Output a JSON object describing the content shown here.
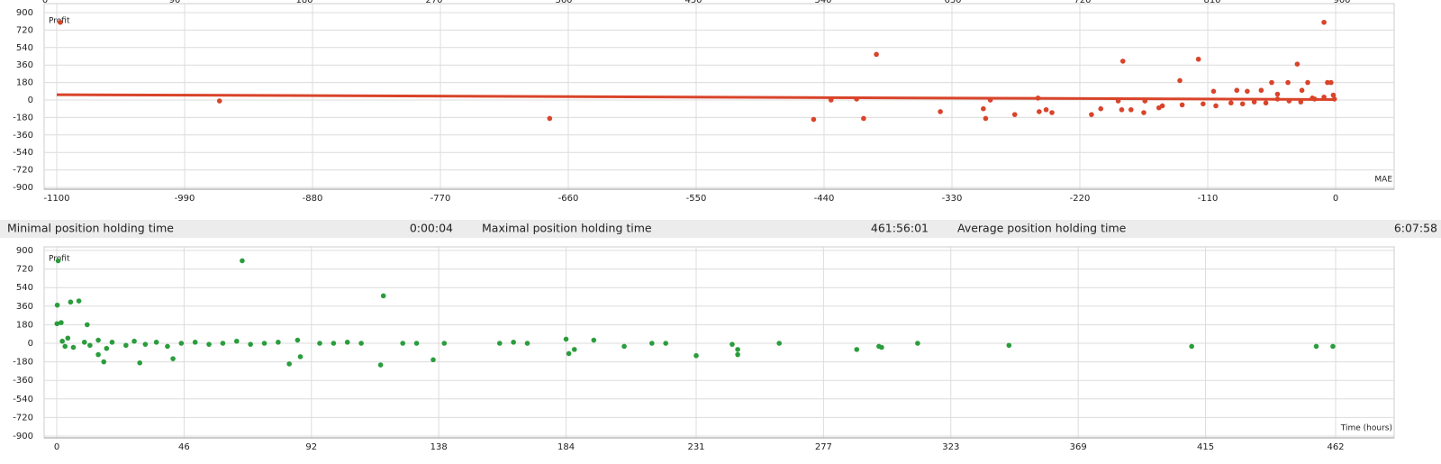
{
  "stats": [
    {
      "label": "Minimal position holding time",
      "value": "0:00:04"
    },
    {
      "label": "Maximal position holding time",
      "value": "461:56:01"
    },
    {
      "label": "Average position holding time",
      "value": "6:07:58"
    }
  ],
  "chart_data": [
    {
      "type": "scatter",
      "y_label": "Profit",
      "x_label": "MAE",
      "xlim": [
        -1100,
        0
      ],
      "xticks": [
        -1100,
        -990,
        -880,
        -770,
        -660,
        -550,
        -440,
        -330,
        -220,
        -110,
        0
      ],
      "x2lim": [
        0,
        900
      ],
      "x2ticks": [
        0,
        90,
        180,
        270,
        360,
        450,
        540,
        630,
        720,
        810,
        900
      ],
      "ylim": [
        -900,
        900
      ],
      "yticks": [
        -900,
        -720,
        -540,
        -360,
        -180,
        0,
        180,
        360,
        540,
        720,
        900
      ],
      "grid": true,
      "series": [
        {
          "color": "#d9442a",
          "x": [
            -1097,
            -960,
            -676,
            -449,
            -434,
            -412,
            -406,
            -395,
            -340,
            -303,
            -301,
            -297,
            -276,
            -256,
            -255,
            -249,
            -244,
            -210,
            -202,
            -187,
            -184,
            -183,
            -176,
            -165,
            -164,
            -152,
            -149,
            -134,
            -132,
            -118,
            -114,
            -105,
            -103,
            -85,
            -76,
            -64,
            -55,
            -50,
            -41,
            -33,
            -29,
            -24,
            -18,
            -10,
            -7,
            -4,
            -2,
            -1,
            -90,
            -70,
            -60,
            -40,
            -20,
            -10,
            -30,
            -80,
            -50
          ],
          "values": [
            800,
            -10,
            -190,
            -200,
            0,
            10,
            -190,
            470,
            -120,
            -90,
            -190,
            0,
            -150,
            20,
            -120,
            -100,
            -130,
            -150,
            -90,
            -10,
            -100,
            400,
            -100,
            -130,
            -10,
            -80,
            -60,
            200,
            -50,
            420,
            -40,
            90,
            -60,
            100,
            90,
            100,
            180,
            10,
            180,
            370,
            100,
            180,
            10,
            800,
            180,
            180,
            50,
            10,
            -30,
            -20,
            -30,
            -10,
            20,
            30,
            -20,
            -40,
            60
          ]
        }
      ],
      "trend": {
        "color": "#d9442a",
        "x": [
          -1100,
          0
        ],
        "values": [
          55,
          5
        ]
      }
    },
    {
      "type": "scatter",
      "y_label": "Profit",
      "x_label": "Time (hours)",
      "xlim": [
        0,
        462
      ],
      "xticks": [
        0,
        46,
        92,
        138,
        184,
        231,
        277,
        323,
        369,
        415,
        462
      ],
      "ylim": [
        -900,
        900
      ],
      "yticks": [
        -900,
        -720,
        -540,
        -360,
        -180,
        0,
        180,
        360,
        540,
        720,
        900
      ],
      "grid": true,
      "series": [
        {
          "color": "#2a9d3c",
          "x": [
            0.5,
            0.1,
            1.6,
            0.2,
            5,
            8,
            11,
            67,
            118,
            17,
            15,
            30,
            42,
            84,
            88,
            117,
            136,
            87,
            184,
            194,
            185,
            187,
            205,
            231,
            246,
            246,
            244,
            261,
            289,
            297,
            298,
            311,
            344,
            410,
            455,
            461,
            2,
            3,
            4,
            6,
            10,
            12,
            15,
            18,
            20,
            25,
            28,
            32,
            36,
            40,
            45,
            50,
            55,
            60,
            65,
            70,
            75,
            80,
            95,
            100,
            105,
            110,
            125,
            130,
            140,
            160,
            165,
            170,
            215,
            220
          ],
          "values": [
            800,
            190,
            200,
            370,
            400,
            410,
            180,
            800,
            460,
            -180,
            -110,
            -190,
            -150,
            -200,
            -130,
            -210,
            -160,
            30,
            40,
            30,
            -100,
            -60,
            -30,
            -120,
            -110,
            -60,
            -10,
            0,
            -60,
            -30,
            -40,
            0,
            -20,
            -30,
            -30,
            -30,
            20,
            -30,
            50,
            -40,
            10,
            -20,
            30,
            -50,
            10,
            -20,
            20,
            -10,
            10,
            -30,
            0,
            10,
            -10,
            0,
            20,
            -10,
            0,
            10,
            0,
            0,
            10,
            0,
            0,
            0,
            0,
            0,
            10,
            0,
            0,
            0
          ]
        }
      ]
    }
  ]
}
